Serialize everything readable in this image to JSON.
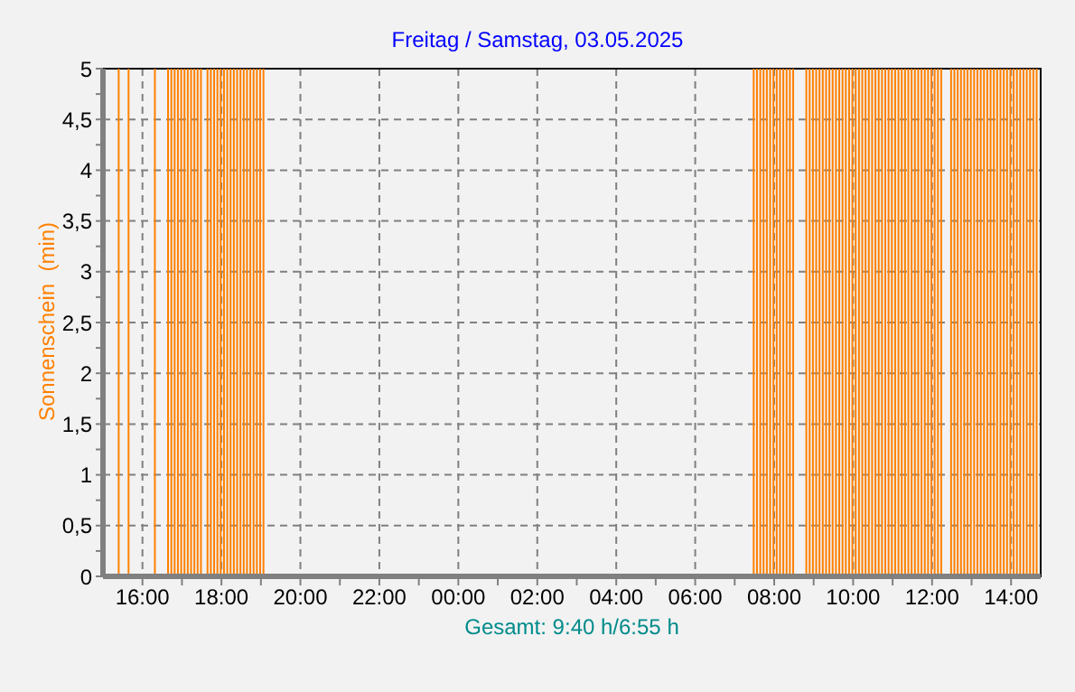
{
  "chart_data": {
    "type": "bar",
    "title": "Freitag / Samstag, 03.05.2025",
    "ylabel": "Sonnenschein  (min)",
    "annotations": [
      "Gesamt: 9:40 h/6:55 h"
    ],
    "x": [
      "2025-05-02T15:25",
      "2025-05-02T15:40",
      "2025-05-02T16:20",
      "2025-05-02T16:40",
      "2025-05-02T16:45",
      "2025-05-02T16:50",
      "2025-05-02T16:55",
      "2025-05-02T17:00",
      "2025-05-02T17:05",
      "2025-05-02T17:10",
      "2025-05-02T17:15",
      "2025-05-02T17:20",
      "2025-05-02T17:25",
      "2025-05-02T17:30",
      "2025-05-02T17:40",
      "2025-05-02T17:45",
      "2025-05-02T17:50",
      "2025-05-02T17:55",
      "2025-05-02T18:00",
      "2025-05-02T18:05",
      "2025-05-02T18:10",
      "2025-05-02T18:15",
      "2025-05-02T18:20",
      "2025-05-02T18:25",
      "2025-05-02T18:30",
      "2025-05-02T18:35",
      "2025-05-02T18:40",
      "2025-05-02T18:45",
      "2025-05-02T18:50",
      "2025-05-02T18:55",
      "2025-05-02T19:00",
      "2025-05-02T19:05",
      "2025-05-03T07:30",
      "2025-05-03T07:35",
      "2025-05-03T07:40",
      "2025-05-03T07:45",
      "2025-05-03T07:50",
      "2025-05-03T07:55",
      "2025-05-03T08:00",
      "2025-05-03T08:05",
      "2025-05-03T08:10",
      "2025-05-03T08:15",
      "2025-05-03T08:20",
      "2025-05-03T08:25",
      "2025-05-03T08:30",
      "2025-05-03T08:50",
      "2025-05-03T08:55",
      "2025-05-03T09:00",
      "2025-05-03T09:05",
      "2025-05-03T09:10",
      "2025-05-03T09:15",
      "2025-05-03T09:20",
      "2025-05-03T09:25",
      "2025-05-03T09:30",
      "2025-05-03T09:35",
      "2025-05-03T09:40",
      "2025-05-03T09:45",
      "2025-05-03T09:50",
      "2025-05-03T09:55",
      "2025-05-03T10:00",
      "2025-05-03T10:05",
      "2025-05-03T10:10",
      "2025-05-03T10:15",
      "2025-05-03T10:20",
      "2025-05-03T10:25",
      "2025-05-03T10:30",
      "2025-05-03T10:35",
      "2025-05-03T10:40",
      "2025-05-03T10:45",
      "2025-05-03T10:50",
      "2025-05-03T10:55",
      "2025-05-03T11:00",
      "2025-05-03T11:05",
      "2025-05-03T11:10",
      "2025-05-03T11:15",
      "2025-05-03T11:20",
      "2025-05-03T11:25",
      "2025-05-03T11:30",
      "2025-05-03T11:35",
      "2025-05-03T11:40",
      "2025-05-03T11:45",
      "2025-05-03T11:50",
      "2025-05-03T11:55",
      "2025-05-03T12:00",
      "2025-05-03T12:05",
      "2025-05-03T12:10",
      "2025-05-03T12:15",
      "2025-05-03T12:30",
      "2025-05-03T12:35",
      "2025-05-03T12:40",
      "2025-05-03T12:45",
      "2025-05-03T12:50",
      "2025-05-03T12:55",
      "2025-05-03T13:00",
      "2025-05-03T13:05",
      "2025-05-03T13:10",
      "2025-05-03T13:15",
      "2025-05-03T13:20",
      "2025-05-03T13:25",
      "2025-05-03T13:30",
      "2025-05-03T13:35",
      "2025-05-03T13:40",
      "2025-05-03T13:45",
      "2025-05-03T13:50",
      "2025-05-03T13:55",
      "2025-05-03T14:00",
      "2025-05-03T14:05",
      "2025-05-03T14:10",
      "2025-05-03T14:15",
      "2025-05-03T14:20",
      "2025-05-03T14:25",
      "2025-05-03T14:30",
      "2025-05-03T14:35",
      "2025-05-03T14:40"
    ],
    "values": [
      5,
      5,
      5,
      5,
      5,
      5,
      5,
      5,
      5,
      5,
      5,
      5,
      5,
      5,
      5,
      5,
      5,
      5,
      5,
      5,
      5,
      5,
      5,
      5,
      5,
      5,
      5,
      5,
      5,
      5,
      5,
      5,
      5,
      5,
      5,
      5,
      5,
      5,
      5,
      5,
      5,
      5,
      5,
      5,
      5,
      5,
      5,
      5,
      5,
      5,
      5,
      5,
      5,
      5,
      5,
      5,
      5,
      5,
      5,
      5,
      5,
      5,
      5,
      5,
      5,
      5,
      5,
      5,
      5,
      5,
      5,
      5,
      5,
      5,
      5,
      5,
      5,
      5,
      5,
      5,
      5,
      5,
      5,
      5,
      5,
      5,
      5,
      5,
      5,
      5,
      5,
      5,
      5,
      5,
      5,
      5,
      5,
      5,
      5,
      5,
      5,
      5,
      5,
      5,
      5,
      5,
      5,
      5,
      5,
      5,
      5,
      5,
      5,
      5
    ],
    "color": "#ff8000",
    "xlim": [
      "2025-05-02T15:00",
      "2025-05-03T14:45"
    ],
    "xticks": [
      {
        "value": "2025-05-02T16:00",
        "label": "16:00"
      },
      {
        "value": "2025-05-02T17:00",
        "label": null
      },
      {
        "value": "2025-05-02T18:00",
        "label": "18:00"
      },
      {
        "value": "2025-05-02T19:00",
        "label": null
      },
      {
        "value": "2025-05-02T20:00",
        "label": "20:00"
      },
      {
        "value": "2025-05-02T21:00",
        "label": null
      },
      {
        "value": "2025-05-02T22:00",
        "label": "22:00"
      },
      {
        "value": "2025-05-02T23:00",
        "label": null
      },
      {
        "value": "2025-05-03T00:00",
        "label": "00:00"
      },
      {
        "value": "2025-05-03T01:00",
        "label": null
      },
      {
        "value": "2025-05-03T02:00",
        "label": "02:00"
      },
      {
        "value": "2025-05-03T03:00",
        "label": null
      },
      {
        "value": "2025-05-03T04:00",
        "label": "04:00"
      },
      {
        "value": "2025-05-03T05:00",
        "label": null
      },
      {
        "value": "2025-05-03T06:00",
        "label": "06:00"
      },
      {
        "value": "2025-05-03T07:00",
        "label": null
      },
      {
        "value": "2025-05-03T08:00",
        "label": "08:00"
      },
      {
        "value": "2025-05-03T09:00",
        "label": null
      },
      {
        "value": "2025-05-03T10:00",
        "label": "10:00"
      },
      {
        "value": "2025-05-03T11:00",
        "label": null
      },
      {
        "value": "2025-05-03T12:00",
        "label": "12:00"
      },
      {
        "value": "2025-05-03T13:00",
        "label": null
      },
      {
        "value": "2025-05-03T14:00",
        "label": "14:00"
      }
    ],
    "ylim": [
      0,
      5
    ],
    "yticks": [
      0,
      {
        "value": 0.25,
        "label": null
      },
      {
        "value": 0.5,
        "label": "0,5"
      },
      {
        "value": 0.75,
        "label": null
      },
      1,
      {
        "value": 1.25,
        "label": null
      },
      {
        "value": 1.5,
        "label": "1,5"
      },
      {
        "value": 1.75,
        "label": null
      },
      2,
      {
        "value": 2.25,
        "label": null
      },
      {
        "value": 2.5,
        "label": "2,5"
      },
      {
        "value": 2.75,
        "label": null
      },
      3,
      {
        "value": 3.25,
        "label": null
      },
      {
        "value": 3.5,
        "label": "3,5"
      },
      {
        "value": 3.75,
        "label": null
      },
      4,
      {
        "value": 4.25,
        "label": null
      },
      {
        "value": 4.5,
        "label": "4,5"
      },
      {
        "value": 4.75,
        "label": null
      },
      5
    ],
    "grid": true
  }
}
